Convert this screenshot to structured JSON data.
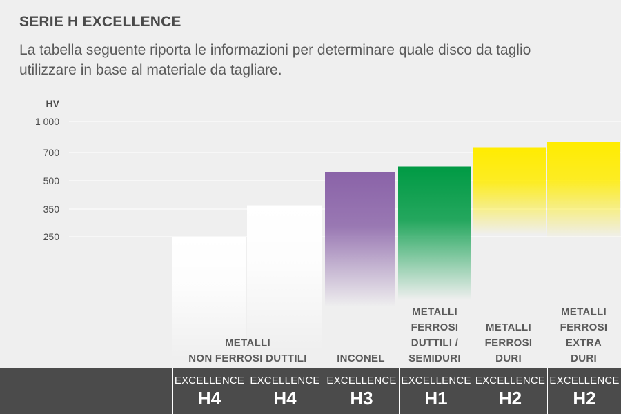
{
  "header": {
    "title": "SERIE H EXCELLENCE",
    "description": "La tabella seguente riporta le informazioni per determinare quale disco da taglio utilizzare in base al materiale da tagliare."
  },
  "chart_data": {
    "type": "bar",
    "ylabel": "HV",
    "yticks": [
      "1 000",
      "700",
      "500",
      "350",
      "250"
    ],
    "grid": true,
    "categories": [
      "METALLI NON FERROSI DUTTILI",
      "INCONEL",
      "METALLI FERROSI DUTTILI / SEMIDURI",
      "METALLI FERROSI DURI",
      "METALLI FERROSI EXTRA DURI"
    ],
    "bars": [
      {
        "series": "EXCELLENCE",
        "grade": "H4",
        "top_hv": 250,
        "color": "#ffffff",
        "category": "METALLI NON FERROSI DUTTILI"
      },
      {
        "series": "EXCELLENCE",
        "grade": "H4",
        "top_hv": 370,
        "color": "#ffffff",
        "category": "METALLI NON FERROSI DUTTILI"
      },
      {
        "series": "EXCELLENCE",
        "grade": "H3",
        "top_hv": 560,
        "color": "#8a63a8",
        "category": "INCONEL"
      },
      {
        "series": "EXCELLENCE",
        "grade": "H1",
        "top_hv": 600,
        "color": "#009a44",
        "category": "METALLI FERROSI DUTTILI / SEMIDURI"
      },
      {
        "series": "EXCELLENCE",
        "grade": "H2",
        "top_hv": 750,
        "color": "#ffec00",
        "category": "METALLI FERROSI DURI"
      },
      {
        "series": "EXCELLENCE",
        "grade": "H2",
        "top_hv": 800,
        "color": "#ffec00",
        "category": "METALLI FERROSI EXTRA DURI"
      }
    ],
    "category_labels": [
      {
        "lines": [
          "METALLI",
          "NON FERROSI DUTTILI"
        ]
      },
      {
        "lines": [
          "INCONEL"
        ]
      },
      {
        "lines": [
          "METALLI",
          "FERROSI",
          "DUTTILI /",
          "SEMIDURI"
        ]
      },
      {
        "lines": [
          "METALLI",
          "FERROSI",
          "DURI"
        ]
      },
      {
        "lines": [
          "METALLI",
          "FERROSI",
          "EXTRA",
          "DURI"
        ]
      }
    ]
  }
}
